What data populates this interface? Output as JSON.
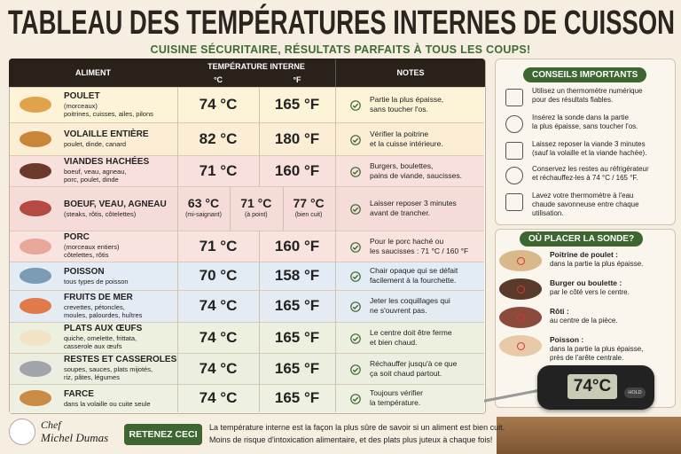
{
  "header": {
    "title": "TABLEAU DES TEMPÉRATURES INTERNES DE CUISSON",
    "subtitle": "CUISINE SÉCURITAIRE, RÉSULTATS PARFAITS À TOUS LES COUPS!"
  },
  "table": {
    "headers": {
      "food": "ALIMENT",
      "temp": "TEMPÉRATURE INTERNE",
      "c": "°C",
      "f": "°F",
      "notes": "NOTES"
    },
    "rows": [
      {
        "name": "POULET",
        "detail": [
          "(morceaux)",
          "poitrines, cuisses, ailes, pilons"
        ],
        "c": "74 °C",
        "f": "165 °F",
        "notes": [
          "Partie la plus épaisse,",
          "sans toucher l'os."
        ]
      },
      {
        "name": "VOLAILLE ENTIÈRE",
        "detail": [
          "poulet, dinde, canard"
        ],
        "c": "82 °C",
        "f": "180 °F",
        "notes": [
          "Vérifier la poitrine",
          "et la cuisse intérieure."
        ]
      },
      {
        "name": "VIANDES HACHÉES",
        "detail": [
          "boeuf, veau, agneau,",
          "porc, poulet, dinde"
        ],
        "c": "71 °C",
        "f": "160 °F",
        "notes": [
          "Burgers, boulettes,",
          "pains de viande, saucisses."
        ]
      },
      {
        "name": "BOEUF, VEAU, AGNEAU",
        "detail": [
          "(steaks, rôtis, côtelettes)"
        ],
        "temps": [
          {
            "t": "63 °C",
            "l": "(mi-saignant)"
          },
          {
            "t": "71 °C",
            "l": "(à point)"
          },
          {
            "t": "77 °C",
            "l": "(bien cuit)"
          }
        ],
        "notes": [
          "Laisser reposer 3 minutes",
          "avant de trancher."
        ]
      },
      {
        "name": "PORC",
        "detail": [
          "(morceaux entiers)",
          "côtelettes, rôtis"
        ],
        "c": "71 °C",
        "f": "160 °F",
        "notes": [
          "Pour le porc haché ou",
          "les saucisses : 71 °C / 160 °F"
        ]
      },
      {
        "name": "POISSON",
        "detail": [
          "tous types de poisson"
        ],
        "c": "70 °C",
        "f": "158 °F",
        "notes": [
          "Chair opaque qui se défait",
          "facilement à la fourchette."
        ]
      },
      {
        "name": "FRUITS DE MER",
        "detail": [
          "crevettes, pétoncles,",
          "moules, palourdes, huîtres"
        ],
        "c": "74 °C",
        "f": "165 °F",
        "notes": [
          "Jeter les coquillages qui",
          "ne s'ouvrent pas."
        ]
      },
      {
        "name": "PLATS AUX ŒUFS",
        "detail": [
          "quiche, omelette, frittata,",
          "casserole aux œufs"
        ],
        "c": "74 °C",
        "f": "165 °F",
        "notes": [
          "Le centre doit être ferme",
          "et bien chaud."
        ]
      },
      {
        "name": "RESTES ET CASSEROLES",
        "detail": [
          "soupes, sauces, plats mijotés,",
          "riz, pâtes, légumes"
        ],
        "c": "74 °C",
        "f": "165 °F",
        "notes": [
          "Réchauffer jusqu'à ce que",
          "ça soit chaud partout."
        ]
      },
      {
        "name": "FARCE",
        "detail": [
          "dans la volaille ou cuite seule"
        ],
        "c": "74 °C",
        "f": "165 °F",
        "notes": [
          "Toujours vérifier",
          "la température."
        ]
      }
    ]
  },
  "tips": {
    "title": "CONSEILS IMPORTANTS",
    "items": [
      [
        "Utilisez un thermomètre numérique",
        "pour des résultats fiables."
      ],
      [
        "Insérez la sonde dans la partie",
        "la plus épaisse, sans toucher l'os."
      ],
      [
        "Laissez reposer la viande 3 minutes",
        "(sauf la volaille et la viande hachée)."
      ],
      [
        "Conservez les restes au réfrigérateur",
        "et réchauffez-les à 74 °C / 165 °F."
      ],
      [
        "Lavez votre thermomètre à l'eau",
        "chaude savonneuse entre chaque",
        "utilisation."
      ]
    ]
  },
  "probe": {
    "title": "OÙ PLACER LA SONDE?",
    "items": [
      {
        "label": "Poitrine de poulet :",
        "text": [
          "dans la partie la plus épaisse."
        ]
      },
      {
        "label": "Burger ou boulette :",
        "text": [
          "par le côté vers le centre."
        ]
      },
      {
        "label": "Rôti :",
        "text": [
          "au centre de la pièce."
        ]
      },
      {
        "label": "Poisson :",
        "text": [
          "dans la partie la plus épaisse,",
          "près de l'arête centrale."
        ]
      }
    ]
  },
  "thermometer": {
    "display": "74°C",
    "button": "HOLD"
  },
  "footer": {
    "brand": [
      "Chef",
      "Michel Dumas"
    ],
    "button": "RETENEZ CECI",
    "text": [
      "La température interne est la façon la plus sûre de savoir si un aliment est bien cuit.",
      "Moins de risque d'intoxication alimentaire, et des plats plus juteux à chaque fois!"
    ]
  }
}
